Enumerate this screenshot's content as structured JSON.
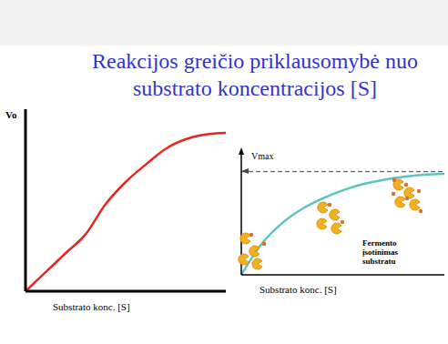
{
  "title": "Reakcijos greičio priklausomybė nuo\nsubstrato koncentracijos [S]",
  "chart_data": [
    {
      "type": "line",
      "x_label": "Substrato konc. [S]",
      "y_label": "Vo",
      "x": [
        0,
        1,
        2,
        3,
        4,
        5,
        6,
        7,
        8,
        9,
        10
      ],
      "values": [
        0,
        0.12,
        0.24,
        0.36,
        0.55,
        0.69,
        0.8,
        0.9,
        0.96,
        0.99,
        1.0
      ],
      "color": "#e8251f",
      "xlim": [
        0,
        10
      ],
      "ylim": [
        0,
        1.15
      ],
      "xticks": [],
      "yticks": [],
      "tick_labels": false
    },
    {
      "type": "line",
      "x_label": "Substrato konc. [S]",
      "x": [
        0,
        1,
        2,
        3,
        4,
        5,
        6,
        7,
        8,
        9,
        10
      ],
      "values": [
        0,
        0.3,
        0.5,
        0.64,
        0.74,
        0.82,
        0.88,
        0.92,
        0.95,
        0.97,
        0.98
      ],
      "color": "#5cc3c0",
      "xlim": [
        0,
        10
      ],
      "ylim": [
        0,
        1.2
      ],
      "xticks": [],
      "yticks": [],
      "tick_labels": false,
      "annotations": [
        {
          "text": "Vmax",
          "y": 1,
          "line_style": "dashed"
        },
        {
          "text": "Fermento įsotinimas substratu"
        }
      ]
    }
  ]
}
